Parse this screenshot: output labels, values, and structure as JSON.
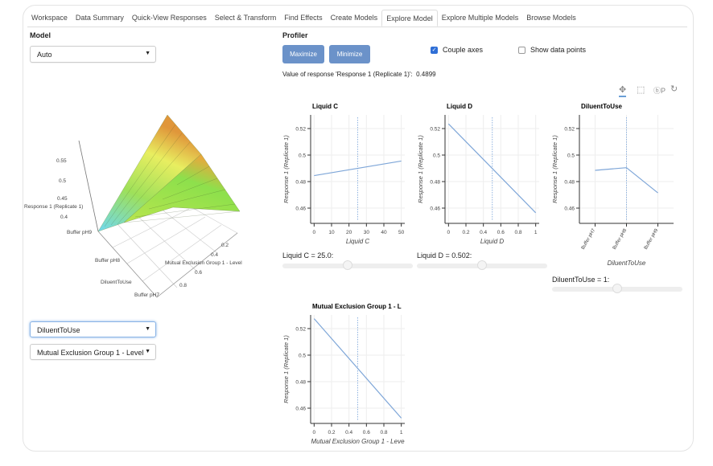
{
  "tabs": [
    "Workspace",
    "Data Summary",
    "Quick-View Responses",
    "Select & Transform",
    "Find Effects",
    "Create Models",
    "Explore Model",
    "Explore Multiple Models",
    "Browse Models"
  ],
  "active_tab": "Explore Model",
  "model": {
    "label": "Model",
    "select_value": "Auto"
  },
  "surface": {
    "z_label": "Response 1 (Replicate 1)",
    "z_ticks": [
      "0.4",
      "0.45",
      "0.5",
      "0.55"
    ],
    "x_label": "DiluentToUse",
    "x_ticks": [
      "Buffer pH9",
      "Buffer pH8",
      "Buffer pH7"
    ],
    "y_label": "Mutual Exclusion Group 1 - Level",
    "y_ticks": [
      "0.2",
      "0.4",
      "0.6",
      "0.8"
    ]
  },
  "surface_x_select": "DiluentToUse",
  "surface_y_select": "Mutual Exclusion Group 1 - Level",
  "profiler": {
    "label": "Profiler",
    "maximize": "Maximize",
    "minimize": "Minimize",
    "couple_axes": "Couple axes",
    "couple_axes_checked": true,
    "show_points": "Show data points",
    "show_points_checked": false,
    "value_text": "Value of response 'Response 1 (Replicate 1)':",
    "value": "0.4899"
  },
  "toolbar": [
    "pan-icon",
    "box-zoom-icon",
    "bokeh-logo-icon",
    "reset-icon"
  ],
  "chart_data": [
    {
      "type": "line",
      "title": "Liquid C",
      "xlabel": "Liquid C",
      "ylabel": "Response 1 (Replicate 1)",
      "x": [
        0,
        50
      ],
      "y": [
        0.4845,
        0.4955
      ],
      "xlim": [
        -2,
        52
      ],
      "ylim": [
        0.4485,
        0.5303
      ],
      "xticks": [
        "0",
        "10",
        "20",
        "30",
        "40",
        "50"
      ],
      "yticks": [
        "0.46",
        "0.48",
        "0.5",
        "0.52"
      ],
      "current": 25,
      "slider_label": "Liquid C = 25.0:",
      "slider_fraction": 0.5
    },
    {
      "type": "line",
      "title": "Liquid D",
      "xlabel": "Liquid D",
      "ylabel": "Response 1 (Replicate 1)",
      "x": [
        0,
        1
      ],
      "y": [
        0.5235,
        0.4565
      ],
      "xlim": [
        -0.04,
        1.04
      ],
      "ylim": [
        0.4485,
        0.5303
      ],
      "xticks": [
        "0",
        "0.2",
        "0.4",
        "0.6",
        "0.8",
        "1"
      ],
      "yticks": [
        "0.46",
        "0.48",
        "0.5",
        "0.52"
      ],
      "current": 0.502,
      "slider_label": "Liquid D = 0.502:",
      "slider_fraction": 0.502
    },
    {
      "type": "line",
      "title": "DiluentToUse",
      "xlabel": "DiluentToUse",
      "ylabel": "Response 1 (Replicate 1)",
      "categories": [
        "Buffer pH7",
        "Buffer pH8",
        "Buffer pH9"
      ],
      "x": [
        0,
        1,
        2
      ],
      "y": [
        0.4885,
        0.4905,
        0.4715
      ],
      "xlim": [
        -0.5,
        2.5
      ],
      "ylim": [
        0.4485,
        0.5303
      ],
      "xticks": [
        "Buffer pH7",
        "Buffer pH8",
        "Buffer pH9"
      ],
      "yticks": [
        "0.46",
        "0.48",
        "0.5",
        "0.52"
      ],
      "current": 1,
      "slider_label": "DiluentToUse = 1:",
      "slider_fraction": 0.5
    },
    {
      "type": "line",
      "title": "Mutual Exclusion Group 1 - L",
      "xlabel": "Mutual Exclusion Group 1 - Leve",
      "ylabel": "Response 1 (Replicate 1)",
      "x": [
        0,
        1
      ],
      "y": [
        0.5275,
        0.4525
      ],
      "xlim": [
        -0.04,
        1.04
      ],
      "ylim": [
        0.4485,
        0.5303
      ],
      "xticks": [
        "0",
        "0.2",
        "0.4",
        "0.6",
        "0.8",
        "1"
      ],
      "yticks": [
        "0.46",
        "0.48",
        "0.5",
        "0.52"
      ],
      "current": 0.5
    }
  ]
}
